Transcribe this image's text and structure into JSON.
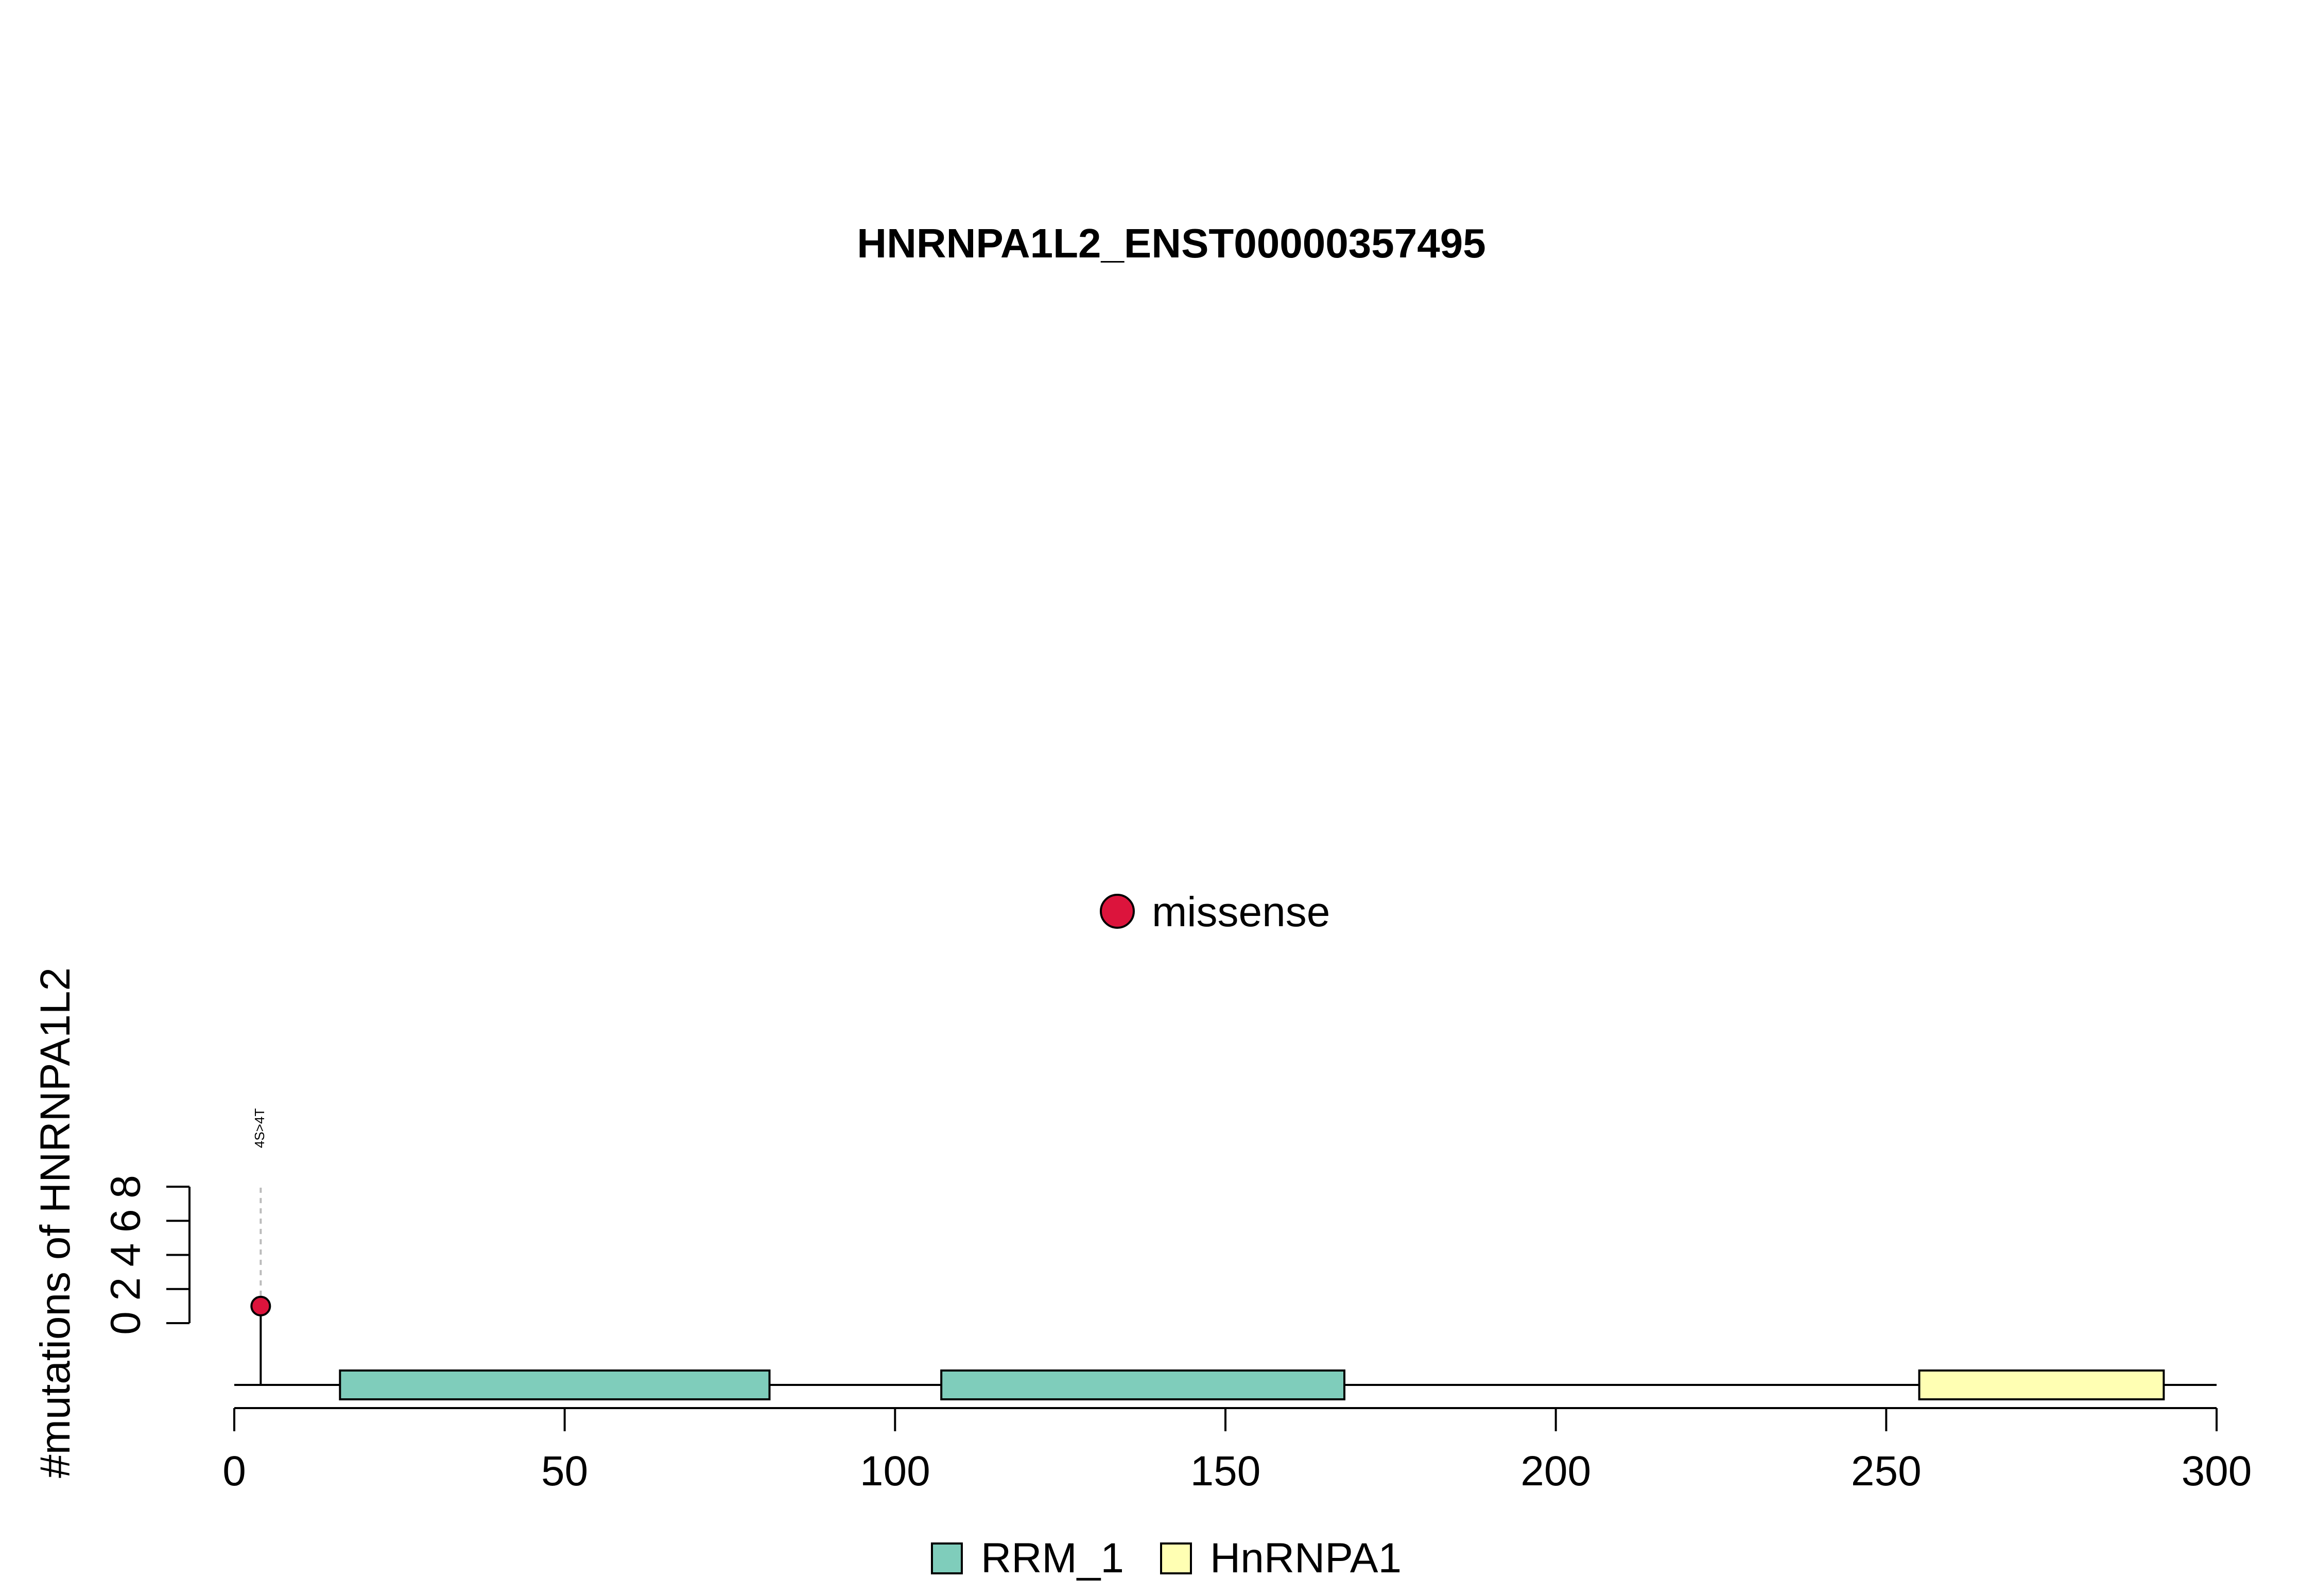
{
  "chart_data": {
    "type": "lollipop",
    "title": "HNRNPA1L2_ENST00000357495",
    "ylabel": "#mutations of HNRNPA1L2",
    "xlabel": "",
    "xlim": [
      0,
      300
    ],
    "x_ticks": [
      0,
      50,
      100,
      150,
      200,
      250,
      300
    ],
    "ylim": [
      0,
      8
    ],
    "y_ticks": [
      0,
      2,
      4,
      6,
      8
    ],
    "protein_length": 300,
    "mutations": [
      {
        "label": "4S>4T",
        "position": 4,
        "count": 1,
        "type": "missense"
      }
    ],
    "domains": [
      {
        "name": "RRM_1",
        "start": 16,
        "end": 81
      },
      {
        "name": "RRM_1",
        "start": 107,
        "end": 168
      },
      {
        "name": "HnRNPA1",
        "start": 255,
        "end": 292
      }
    ],
    "mutation_legend": [
      {
        "label": "missense",
        "color": "#DC143C"
      }
    ],
    "domain_legend": [
      {
        "label": "RRM_1",
        "color": "#7FCDBB"
      },
      {
        "label": "HnRNPA1",
        "color": "#FFFFB3"
      }
    ],
    "colors": {
      "RRM_1": "#7FCDBB",
      "HnRNPA1": "#FFFFB3",
      "missense": "#DC143C"
    },
    "grid": false
  }
}
